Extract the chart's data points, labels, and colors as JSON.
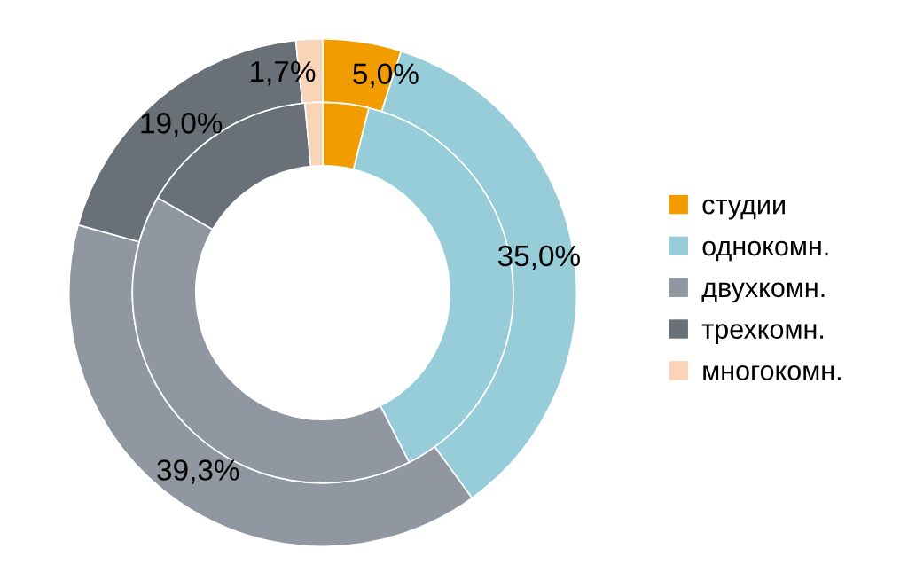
{
  "chart_data": {
    "type": "donut",
    "categories": [
      "студии",
      "однокомн.",
      "двухкомн.",
      "трехкомн.",
      "многокомн."
    ],
    "colors": [
      "#f39c00",
      "#96cdd8",
      "#9097a0",
      "#6a7077",
      "#fad4b8"
    ],
    "series": [
      {
        "values": [
          5.0,
          35.0,
          39.3,
          19.0,
          1.7
        ],
        "value_labels": [
          "5,0%",
          "35,0%",
          "39,3%",
          "19,0%",
          "1,7%"
        ]
      },
      {
        "values": [
          3.9,
          38.6,
          40.8,
          15.2,
          1.5
        ]
      }
    ],
    "legend": "right"
  }
}
